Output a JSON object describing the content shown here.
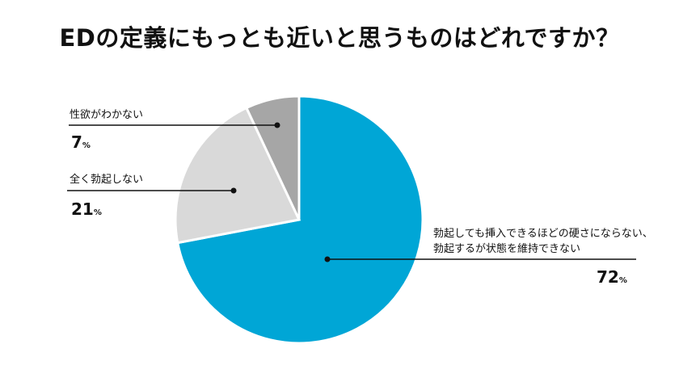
{
  "chart_data": {
    "type": "pie",
    "title": "EDの定義にもっとも近いと思うものはどれですか？",
    "slices": [
      {
        "label": "勃起しても挿入できるほどの硬さにならない、勃起するが状態を維持できない",
        "label_lines": [
          "勃起しても挿入できるほどの硬さにならない、",
          "勃起するが状態を維持できない"
        ],
        "value": 72,
        "value_text": "72",
        "color": "#00a6d6"
      },
      {
        "label": "全く勃起しない",
        "value": 21,
        "value_text": "21",
        "color": "#d9d9d9"
      },
      {
        "label": "性欲がわかない",
        "value": 7,
        "value_text": "7",
        "color": "#a6a6a6"
      }
    ],
    "unit": "%",
    "start_angle": "top",
    "direction": "clockwise"
  }
}
